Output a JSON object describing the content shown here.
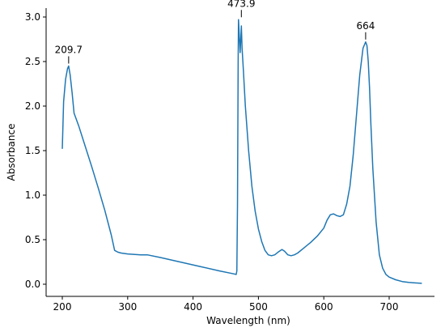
{
  "chart_data": {
    "type": "line",
    "title": "",
    "xlabel": "Wavelength (nm)",
    "ylabel": "Absorbance",
    "xlim": [
      200,
      750
    ],
    "ylim": [
      0.0,
      3.0
    ],
    "xticks": [
      200,
      300,
      400,
      500,
      600,
      700
    ],
    "yticks": [
      0.0,
      0.5,
      1.0,
      1.5,
      2.0,
      2.5,
      3.0
    ],
    "ytick_labels": [
      "0.0",
      "0.5",
      "1.0",
      "1.5",
      "2.0",
      "2.5",
      "3.0"
    ],
    "grid": false,
    "line_color": "#1f77b4",
    "series": [
      {
        "x": [
          200,
          202,
          205,
          208,
          209.7,
          212,
          215,
          218,
          225,
          235,
          245,
          255,
          265,
          275,
          280,
          285,
          290,
          300,
          320,
          330,
          350,
          380,
          410,
          440,
          460,
          466,
          467,
          468,
          469,
          469.5,
          470,
          471,
          472,
          473,
          473.9,
          475,
          477,
          480,
          485,
          490,
          495,
          500,
          505,
          510,
          515,
          520,
          525,
          530,
          536,
          540,
          545,
          550,
          555,
          560,
          570,
          580,
          590,
          600,
          605,
          610,
          615,
          620,
          625,
          630,
          635,
          640,
          645,
          650,
          655,
          660,
          664,
          666,
          668,
          670,
          672,
          675,
          680,
          685,
          690,
          695,
          700,
          710,
          720,
          730,
          740,
          750
        ],
        "y": [
          1.52,
          2.05,
          2.3,
          2.42,
          2.45,
          2.35,
          2.15,
          1.92,
          1.78,
          1.55,
          1.32,
          1.08,
          0.83,
          0.55,
          0.38,
          0.36,
          0.35,
          0.34,
          0.33,
          0.33,
          0.3,
          0.25,
          0.2,
          0.15,
          0.12,
          0.11,
          0.15,
          0.9,
          2.5,
          2.97,
          2.9,
          2.75,
          2.6,
          2.75,
          2.9,
          2.65,
          2.4,
          2.0,
          1.5,
          1.1,
          0.82,
          0.62,
          0.48,
          0.38,
          0.33,
          0.32,
          0.33,
          0.36,
          0.39,
          0.37,
          0.33,
          0.32,
          0.33,
          0.35,
          0.41,
          0.47,
          0.54,
          0.63,
          0.72,
          0.78,
          0.79,
          0.77,
          0.76,
          0.78,
          0.9,
          1.1,
          1.45,
          1.9,
          2.35,
          2.65,
          2.72,
          2.68,
          2.5,
          2.2,
          1.8,
          1.3,
          0.7,
          0.33,
          0.18,
          0.11,
          0.08,
          0.05,
          0.03,
          0.02,
          0.015,
          0.01
        ]
      }
    ],
    "annotations": [
      {
        "label": "209.7",
        "x": 209.7,
        "y": 2.45
      },
      {
        "label": "473.9",
        "x": 473.9,
        "y": 2.97
      },
      {
        "label": "664",
        "x": 664,
        "y": 2.72
      }
    ]
  }
}
